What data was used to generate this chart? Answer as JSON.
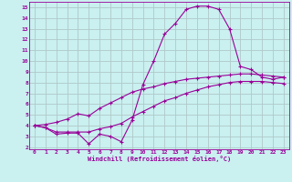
{
  "xlabel": "Windchill (Refroidissement éolien,°C)",
  "background_color": "#caf0f0",
  "grid_color": "#b0c8c8",
  "line_color": "#990099",
  "xlim": [
    -0.5,
    23.5
  ],
  "ylim": [
    1.8,
    15.5
  ],
  "xticks": [
    0,
    1,
    2,
    3,
    4,
    5,
    6,
    7,
    8,
    9,
    10,
    11,
    12,
    13,
    14,
    15,
    16,
    17,
    18,
    19,
    20,
    21,
    22,
    23
  ],
  "yticks": [
    2,
    3,
    4,
    5,
    6,
    7,
    8,
    9,
    10,
    11,
    12,
    13,
    14,
    15
  ],
  "line1_x": [
    0,
    1,
    2,
    3,
    4,
    5,
    6,
    7,
    8,
    9,
    10,
    11,
    12,
    13,
    14,
    15,
    16,
    17,
    18,
    19,
    20,
    21,
    22,
    23
  ],
  "line1_y": [
    4.0,
    3.8,
    3.2,
    3.3,
    3.3,
    2.3,
    3.2,
    3.0,
    2.5,
    4.5,
    7.8,
    10.0,
    12.5,
    13.5,
    14.8,
    15.1,
    15.1,
    14.8,
    13.0,
    9.5,
    9.2,
    8.5,
    8.3,
    8.5
  ],
  "line2_x": [
    0,
    1,
    2,
    3,
    4,
    5,
    6,
    7,
    8,
    9,
    10,
    11,
    12,
    13,
    14,
    15,
    16,
    17,
    18,
    19,
    20,
    21,
    22,
    23
  ],
  "line2_y": [
    4.0,
    4.1,
    4.3,
    4.6,
    5.1,
    4.9,
    5.6,
    6.1,
    6.6,
    7.1,
    7.4,
    7.6,
    7.9,
    8.1,
    8.3,
    8.4,
    8.5,
    8.6,
    8.7,
    8.8,
    8.8,
    8.7,
    8.6,
    8.5
  ],
  "line3_x": [
    0,
    1,
    2,
    3,
    4,
    5,
    6,
    7,
    8,
    9,
    10,
    11,
    12,
    13,
    14,
    15,
    16,
    17,
    18,
    19,
    20,
    21,
    22,
    23
  ],
  "line3_y": [
    4.0,
    3.8,
    3.4,
    3.4,
    3.4,
    3.4,
    3.7,
    3.9,
    4.2,
    4.8,
    5.3,
    5.8,
    6.3,
    6.6,
    7.0,
    7.3,
    7.6,
    7.8,
    8.0,
    8.1,
    8.1,
    8.1,
    8.0,
    7.9
  ]
}
